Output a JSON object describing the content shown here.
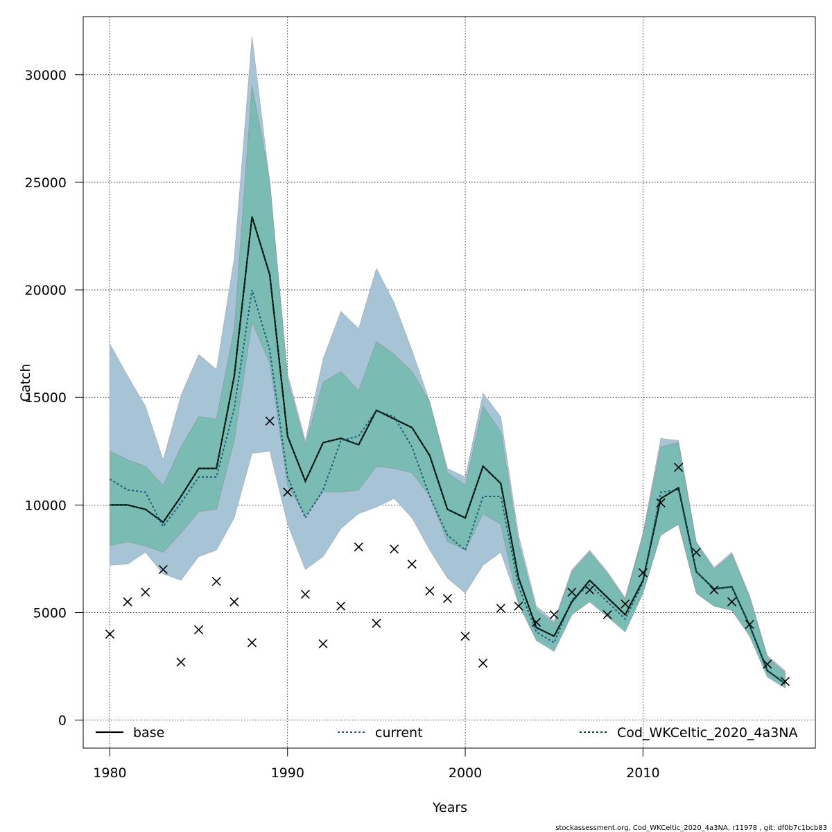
{
  "chart_data": {
    "type": "line",
    "title": "",
    "xlabel": "Years",
    "ylabel": "Catch",
    "xlim": [
      1978.5,
      2019.7
    ],
    "ylim": [
      -1300,
      32700
    ],
    "xticks": [
      1980,
      1990,
      2000,
      2010
    ],
    "yticks": [
      0,
      5000,
      10000,
      15000,
      20000,
      25000,
      30000
    ],
    "grid": true,
    "legend_position": "bottom",
    "footer": "stockassessment.org, Cod_WKCeltic_2020_4a3NA, r11978 , git: df0b7c1bcb83",
    "colors": {
      "band_current": "#a6c4d6",
      "band_base": "#6fb7b3",
      "band_cod": "#7fc2b0",
      "line_base": "#000000",
      "line_current": "#1f5a7a",
      "line_cod": "#0a3f33",
      "marker": "#000000"
    },
    "series": [
      {
        "name": "base",
        "style": "solid",
        "x": [
          1980,
          1981,
          1982,
          1983,
          1984,
          1985,
          1986,
          1987,
          1988,
          1989,
          1990,
          1991,
          1992,
          1993,
          1994,
          1995,
          1996,
          1997,
          1998,
          1999,
          2000,
          2001,
          2002,
          2003,
          2004,
          2005,
          2006,
          2007,
          2008,
          2009,
          2010,
          2011,
          2012,
          2013,
          2014,
          2015,
          2016,
          2017,
          2018
        ],
        "y": [
          10000,
          10000,
          9800,
          9200,
          10400,
          11700,
          11700,
          16000,
          23400,
          20700,
          13200,
          11100,
          12900,
          13100,
          12800,
          14400,
          14000,
          13600,
          12300,
          9800,
          9400,
          11800,
          11000,
          6600,
          4300,
          3900,
          5500,
          6500,
          5700,
          4900,
          6500,
          10300,
          10800,
          6900,
          6100,
          6200,
          4400,
          2300,
          1700
        ]
      },
      {
        "name": "current",
        "style": "dotted",
        "x": [
          1980,
          1981,
          1982,
          1983,
          1984,
          1985,
          1986,
          1987,
          1988,
          1989,
          1990,
          1991,
          1992,
          1993,
          1994,
          1995,
          1996,
          1997,
          1998,
          1999,
          2000,
          2001,
          2002,
          2003,
          2004,
          2005,
          2006,
          2007,
          2008,
          2009,
          2010,
          2011,
          2012,
          2013,
          2014,
          2015,
          2016,
          2017,
          2018
        ],
        "y": [
          11200,
          10700,
          10600,
          9000,
          10100,
          11300,
          11300,
          14500,
          20000,
          17200,
          11300,
          9400,
          10700,
          13000,
          13200,
          14400,
          14100,
          12700,
          10400,
          8600,
          7900,
          10400,
          10400,
          6200,
          4100,
          3600,
          5600,
          6300,
          5500,
          4700,
          6400,
          10600,
          10700,
          6900,
          6100,
          6200,
          4400,
          2300,
          1700
        ]
      },
      {
        "name": "Cod_WKCeltic_2020_4a3NA",
        "style": "dotted",
        "x": [
          1980,
          1981,
          1982,
          1983,
          1984,
          1985,
          1986,
          1987,
          1988,
          1989,
          1990,
          1991,
          1992,
          1993,
          1994,
          1995,
          1996,
          1997,
          1998,
          1999,
          2000,
          2001,
          2002,
          2003,
          2004,
          2005,
          2006,
          2007,
          2008,
          2009,
          2010,
          2011,
          2012,
          2013,
          2014,
          2015,
          2016,
          2017,
          2018
        ],
        "y": [
          10000,
          10000,
          9800,
          9200,
          10400,
          11700,
          11700,
          16000,
          23400,
          20700,
          13200,
          11100,
          12900,
          13100,
          12800,
          14400,
          14000,
          13600,
          12300,
          9800,
          9400,
          11800,
          11000,
          6600,
          4300,
          3900,
          5500,
          6500,
          5700,
          4900,
          6500,
          10300,
          10800,
          6900,
          6100,
          6200,
          4400,
          2300,
          1700
        ]
      }
    ],
    "bands": [
      {
        "series": "current",
        "x": [
          1980,
          1981,
          1982,
          1983,
          1984,
          1985,
          1986,
          1987,
          1988,
          1989,
          1990,
          1991,
          1992,
          1993,
          1994,
          1995,
          1996,
          1997,
          1998,
          1999,
          2000,
          2001,
          2002,
          2003,
          2004,
          2005,
          2006,
          2007,
          2008,
          2009,
          2010,
          2011,
          2012,
          2013,
          2014,
          2015,
          2016,
          2017,
          2018
        ],
        "upper": [
          17500,
          16000,
          14600,
          12100,
          15100,
          17000,
          16300,
          21500,
          31800,
          25000,
          16100,
          13000,
          16800,
          19000,
          18200,
          21000,
          19400,
          17200,
          14800,
          11700,
          11300,
          15200,
          14100,
          8600,
          5300,
          4600,
          7000,
          7900,
          6900,
          5700,
          8700,
          13100,
          13000,
          8300,
          7100,
          7800,
          5800,
          3000,
          2300
        ],
        "lower": [
          7200,
          7250,
          7800,
          6800,
          6500,
          7600,
          7900,
          9400,
          12400,
          12500,
          9100,
          7000,
          7600,
          8900,
          9600,
          9900,
          10300,
          9400,
          7900,
          6600,
          5900,
          7200,
          7800,
          5400,
          3800,
          3300,
          4900,
          5600,
          4900,
          4200,
          5900,
          8600,
          9100,
          5900,
          5300,
          5100,
          4000,
          2100,
          1500
        ]
      },
      {
        "series": "base",
        "x": [
          1980,
          1981,
          1982,
          1983,
          1984,
          1985,
          1986,
          1987,
          1988,
          1989,
          1990,
          1991,
          1992,
          1993,
          1994,
          1995,
          1996,
          1997,
          1998,
          1999,
          2000,
          2001,
          2002,
          2003,
          2004,
          2005,
          2006,
          2007,
          2008,
          2009,
          2010,
          2011,
          2012,
          2013,
          2014,
          2015,
          2016,
          2017,
          2018
        ],
        "upper": [
          12500,
          12100,
          11800,
          10900,
          12700,
          14100,
          14000,
          18200,
          29500,
          25100,
          15800,
          12800,
          15700,
          16200,
          15300,
          17600,
          17000,
          16200,
          14800,
          11500,
          10900,
          14600,
          13400,
          8200,
          5100,
          4500,
          6900,
          7800,
          6800,
          5600,
          8600,
          12700,
          12900,
          8200,
          7000,
          7700,
          5700,
          2900,
          2200
        ],
        "lower": [
          8100,
          8300,
          8100,
          7800,
          8700,
          9700,
          9800,
          13000,
          18500,
          16600,
          10900,
          9500,
          10600,
          10600,
          10700,
          11800,
          11700,
          11500,
          10400,
          8300,
          7900,
          9600,
          9100,
          5400,
          3700,
          3200,
          4900,
          5500,
          4800,
          4100,
          5900,
          8600,
          9100,
          5900,
          5300,
          5100,
          3900,
          2000,
          1500
        ]
      },
      {
        "series": "Cod_WKCeltic_2020_4a3NA",
        "x": [
          1980,
          1981,
          1982,
          1983,
          1984,
          1985,
          1986,
          1987,
          1988,
          1989,
          1990,
          1991,
          1992,
          1993,
          1994,
          1995,
          1996,
          1997,
          1998,
          1999,
          2000,
          2001,
          2002,
          2003,
          2004,
          2005,
          2006,
          2007,
          2008,
          2009,
          2010,
          2011,
          2012,
          2013,
          2014,
          2015,
          2016,
          2017,
          2018
        ],
        "upper": [
          12500,
          12100,
          11800,
          10900,
          12700,
          14100,
          14000,
          18200,
          29500,
          25100,
          15800,
          12800,
          15700,
          16200,
          15300,
          17600,
          17000,
          16200,
          14800,
          11500,
          10900,
          14600,
          13400,
          8200,
          5100,
          4500,
          6900,
          7800,
          6800,
          5600,
          8600,
          12700,
          12900,
          8200,
          7000,
          7700,
          5700,
          2900,
          2200
        ],
        "lower": [
          8100,
          8300,
          8100,
          7800,
          8700,
          9700,
          9800,
          13000,
          18500,
          16600,
          10900,
          9500,
          10600,
          10600,
          10700,
          11800,
          11700,
          11500,
          10400,
          8300,
          7900,
          9600,
          9100,
          5400,
          3700,
          3200,
          4900,
          5500,
          4800,
          4100,
          5900,
          8600,
          9100,
          5900,
          5300,
          5100,
          3900,
          2000,
          1500
        ]
      }
    ],
    "observations": {
      "x": [
        1980,
        1981,
        1982,
        1983,
        1984,
        1985,
        1986,
        1987,
        1988,
        1989,
        1990,
        1991,
        1992,
        1993,
        1994,
        1995,
        1996,
        1997,
        1998,
        1999,
        2000,
        2001,
        2002,
        2003,
        2004,
        2005,
        2006,
        2007,
        2008,
        2009,
        2010,
        2011,
        2012,
        2013,
        2014,
        2015,
        2016,
        2017,
        2018
      ],
      "y": [
        4000,
        5500,
        5950,
        7000,
        2700,
        4200,
        6450,
        5500,
        3600,
        13900,
        10600,
        5850,
        3550,
        5300,
        8050,
        4500,
        7950,
        7250,
        6000,
        5650,
        3900,
        2650,
        5200,
        5300,
        4550,
        4900,
        5950,
        6050,
        4900,
        5400,
        6850,
        10100,
        11750,
        7800,
        6050,
        5500,
        4450,
        2600,
        1800
      ]
    }
  }
}
